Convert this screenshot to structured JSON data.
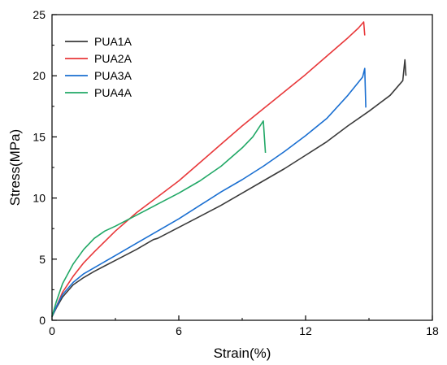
{
  "chart_data": {
    "type": "line",
    "xlabel": "Strain(%)",
    "ylabel": "Stress(MPa)",
    "xlim": [
      0,
      18
    ],
    "ylim": [
      0,
      25
    ],
    "xticks": [
      0,
      6,
      12,
      18
    ],
    "yticks": [
      0,
      5,
      10,
      15,
      20,
      25
    ],
    "grid": false,
    "legend_position": "top-left",
    "series": [
      {
        "name": "PUA1A",
        "color": "#3a3a3a",
        "x": [
          0,
          0.2,
          0.5,
          1,
          1.5,
          2,
          3,
          4,
          4.8,
          5,
          6,
          7,
          8,
          9,
          10,
          11,
          12,
          13,
          14,
          15,
          16,
          16.6,
          16.7,
          16.75
        ],
        "y": [
          0.3,
          1.0,
          1.9,
          2.9,
          3.5,
          4.0,
          4.9,
          5.8,
          6.6,
          6.7,
          7.6,
          8.5,
          9.4,
          10.4,
          11.4,
          12.4,
          13.5,
          14.6,
          15.9,
          17.1,
          18.4,
          19.6,
          21.3,
          20.0
        ]
      },
      {
        "name": "PUA2A",
        "color": "#e8383a",
        "x": [
          0,
          0.2,
          0.5,
          1,
          1.5,
          2,
          3,
          4,
          5,
          6,
          7,
          8,
          9,
          10,
          11,
          12,
          13,
          14,
          14.5,
          14.75,
          14.8
        ],
        "y": [
          0.3,
          1.1,
          2.3,
          3.6,
          4.7,
          5.6,
          7.3,
          8.8,
          10.1,
          11.4,
          12.9,
          14.4,
          15.9,
          17.3,
          18.7,
          20.1,
          21.6,
          23.1,
          23.9,
          24.4,
          23.3
        ]
      },
      {
        "name": "PUA3A",
        "color": "#1a6fd1",
        "x": [
          0,
          0.2,
          0.5,
          1,
          1.5,
          2,
          3,
          4,
          5,
          6,
          7,
          8,
          9,
          10,
          11,
          12,
          13,
          14,
          14.7,
          14.8,
          14.85
        ],
        "y": [
          0.3,
          1.1,
          2.1,
          3.1,
          3.8,
          4.3,
          5.3,
          6.3,
          7.3,
          8.3,
          9.4,
          10.5,
          11.5,
          12.6,
          13.8,
          15.1,
          16.5,
          18.4,
          19.9,
          20.6,
          17.4
        ]
      },
      {
        "name": "PUA4A",
        "color": "#21a866",
        "x": [
          0,
          0.2,
          0.5,
          1,
          1.5,
          2,
          2.5,
          3,
          4,
          5,
          6,
          7,
          8,
          9,
          9.5,
          10,
          10.05,
          10.1
        ],
        "y": [
          0.3,
          1.5,
          3.0,
          4.6,
          5.8,
          6.7,
          7.3,
          7.7,
          8.6,
          9.5,
          10.4,
          11.4,
          12.6,
          14.1,
          15.0,
          16.3,
          15.0,
          13.7
        ]
      }
    ]
  }
}
